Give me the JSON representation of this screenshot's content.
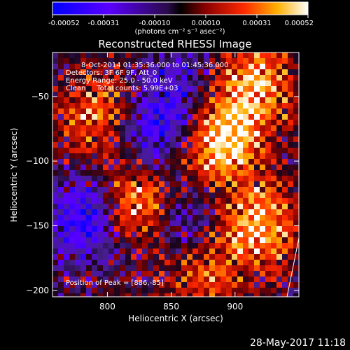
{
  "colorbar": {
    "ticks": [
      "-0.00052",
      "-0.00031",
      "-0.00010",
      "0.00010",
      "0.00031",
      "0.00052"
    ],
    "unit_label": "(photons cm⁻² s⁻¹ asec⁻²)",
    "colors": [
      "#0000ff",
      "#5a00ff",
      "#3a1f8a",
      "#000000",
      "#7a0000",
      "#ff2a00",
      "#ffb000",
      "#ffffff"
    ]
  },
  "chart_data": {
    "type": "heatmap",
    "title": "Reconstructed RHESSI Image",
    "xlabel": "Heliocentric X (arcsec)",
    "ylabel": "Heliocentric Y (arcsec)",
    "xlim": [
      757,
      950
    ],
    "ylim": [
      -205,
      -16
    ],
    "x_ticks": [
      800,
      850,
      900
    ],
    "y_ticks": [
      -50,
      -100,
      -150,
      -200
    ],
    "x_tick_labels": [
      "800",
      "850",
      "900"
    ],
    "y_tick_labels": [
      "−50",
      "−100",
      "−150",
      "−200"
    ],
    "value_range": [
      -0.00052,
      0.00052
    ],
    "grid": false,
    "annotations": {
      "time": "8-Oct-2014 01:35:36.000 to 01:45:36.000",
      "detectors": "Detectors: 3F 6F 9F, Att_0",
      "energy": "Energy Range: 25.0 - 50.0 keV",
      "clean": "Clean     Total counts: 5.99E+03",
      "peak": "Position of Peak = [886,-85]"
    },
    "peak_position": [
      886,
      -85
    ],
    "bright_sources": [
      {
        "x": 890,
        "y": -85,
        "level": 1.0
      },
      {
        "x": 918,
        "y": -150,
        "level": 0.85
      },
      {
        "x": 820,
        "y": -135,
        "level": 0.9
      },
      {
        "x": 795,
        "y": -65,
        "level": 0.7
      },
      {
        "x": 915,
        "y": -40,
        "level": 0.8
      },
      {
        "x": 875,
        "y": -185,
        "level": 0.55
      }
    ],
    "dark_sources": [
      {
        "x": 785,
        "y": -145,
        "level": -0.9
      },
      {
        "x": 835,
        "y": -75,
        "level": -0.7
      },
      {
        "x": 860,
        "y": -150,
        "level": -0.5
      },
      {
        "x": 855,
        "y": -40,
        "level": -0.4
      }
    ]
  },
  "timestamp": "28-May-2017 11:18"
}
